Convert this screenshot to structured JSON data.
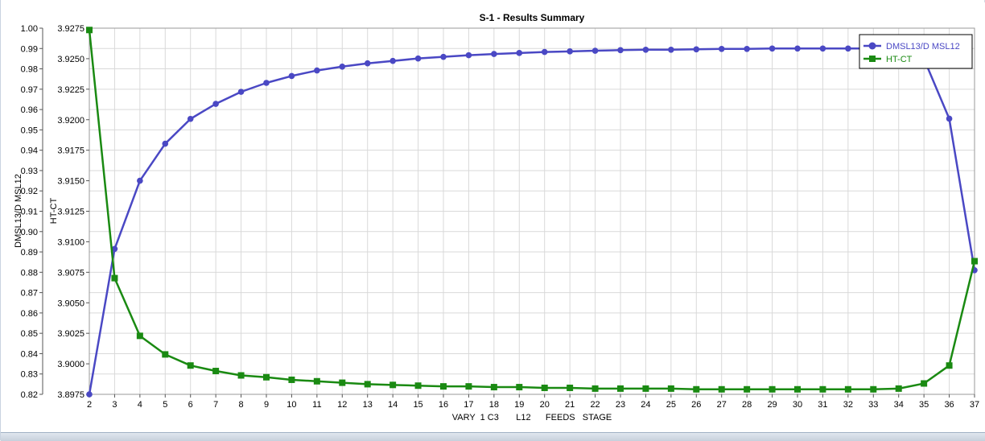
{
  "chart_data": {
    "type": "line",
    "title": "S-1 - Results Summary",
    "xlabel": "VARY  1 C3       L12      FEEDS   STAGE",
    "ylabel_left": "DMSL13/D MSL12",
    "ylabel_right": "HT-CT",
    "x": [
      2,
      3,
      4,
      5,
      6,
      7,
      8,
      9,
      10,
      11,
      12,
      13,
      14,
      15,
      16,
      17,
      18,
      19,
      20,
      21,
      22,
      23,
      24,
      25,
      26,
      27,
      28,
      29,
      30,
      31,
      32,
      33,
      34,
      35,
      36,
      37
    ],
    "xlim": [
      2,
      37
    ],
    "ylim_left": [
      0.82,
      1.0
    ],
    "ylim_right": [
      3.8975,
      3.9275
    ],
    "yticks_left": [
      "0.82",
      "0.83",
      "0.84",
      "0.85",
      "0.86",
      "0.87",
      "0.88",
      "0.89",
      "0.90",
      "0.91",
      "0.92",
      "0.93",
      "0.94",
      "0.95",
      "0.96",
      "0.97",
      "0.98",
      "0.99",
      "1.00"
    ],
    "yticks_right": [
      "3.8975",
      "3.9000",
      "3.9025",
      "3.9050",
      "3.9075",
      "3.9100",
      "3.9125",
      "3.9150",
      "3.9175",
      "3.9200",
      "3.9225",
      "3.9250",
      "3.9275"
    ],
    "grid": true,
    "legend_position": "top-right",
    "series": [
      {
        "name": "DMSL13/D MSL12",
        "axis": "left",
        "color": "#4a48c4",
        "marker": "circle",
        "values": [
          0.82,
          0.8915,
          0.925,
          0.9432,
          0.9554,
          0.9628,
          0.9687,
          0.9731,
          0.9765,
          0.9792,
          0.9811,
          0.9827,
          0.9839,
          0.9851,
          0.9859,
          0.9867,
          0.9873,
          0.9878,
          0.9883,
          0.9886,
          0.9889,
          0.9892,
          0.9894,
          0.9894,
          0.9896,
          0.9898,
          0.9898,
          0.99,
          0.99,
          0.99,
          0.99,
          0.99,
          0.9893,
          0.9849,
          0.9555,
          0.881
        ]
      },
      {
        "name": "HT-CT",
        "axis": "right",
        "color": "#1a8a12",
        "marker": "square",
        "values": [
          3.92735,
          3.90702,
          3.90229,
          3.90077,
          3.89986,
          3.89941,
          3.89905,
          3.8989,
          3.89869,
          3.89857,
          3.89845,
          3.89833,
          3.89827,
          3.89821,
          3.89815,
          3.89815,
          3.89809,
          3.89809,
          3.89803,
          3.89803,
          3.89797,
          3.89797,
          3.89797,
          3.89797,
          3.89791,
          3.89791,
          3.89791,
          3.89791,
          3.89791,
          3.89791,
          3.89791,
          3.89791,
          3.89797,
          3.89839,
          3.89986,
          3.90841
        ]
      }
    ]
  }
}
